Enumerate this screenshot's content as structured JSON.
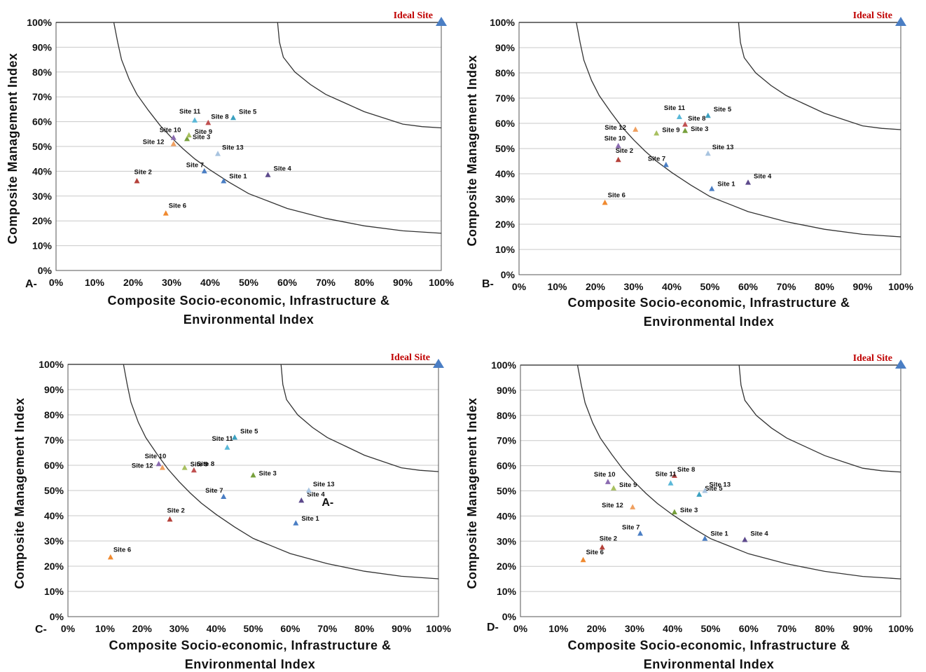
{
  "colors": {
    "Site 1": "#4a7ec4",
    "Site 2": "#b5413a",
    "Site 3": "#77a03c",
    "Site 4": "#5d4a8c",
    "Site 5": "#3aa0c0",
    "Site 6": "#f08a30",
    "Site 7": "#4a7ec4",
    "Site 8": "#c05050",
    "Site 9": "#a8c060",
    "Site 10": "#8a6ab0",
    "Site 11": "#5ab8d8",
    "Site 12": "#f0a060",
    "Site 13": "#a8c4e0",
    "ideal": "#4a7ec4",
    "curve": "#333333",
    "grid": "#c8c8c8"
  },
  "chart_data": [
    {
      "type": "scatter",
      "panel_label": "A-",
      "title": "",
      "xlabel": [
        "Composite Socio-economic, Infrastructure &",
        "Environmental Index"
      ],
      "ylabel": "Composite Management Index",
      "xlim": [
        0,
        100
      ],
      "ylim": [
        0,
        100
      ],
      "xticks": [
        "0%",
        "10%",
        "20%",
        "30%",
        "40%",
        "50%",
        "60%",
        "70%",
        "80%",
        "90%",
        "100%"
      ],
      "yticks": [
        "0%",
        "10%",
        "20%",
        "30%",
        "40%",
        "50%",
        "60%",
        "70%",
        "80%",
        "90%",
        "100%"
      ],
      "grid": "horizontal",
      "ideal": {
        "label": "Ideal Site",
        "x": 100,
        "y": 100
      },
      "curves": [
        [
          [
            15,
            100
          ],
          [
            16,
            92
          ],
          [
            17,
            85
          ],
          [
            19,
            77
          ],
          [
            21,
            71
          ],
          [
            24,
            64.5
          ],
          [
            27,
            58.5
          ],
          [
            30,
            53.5
          ],
          [
            33,
            49
          ],
          [
            36,
            45
          ],
          [
            40,
            40.5
          ],
          [
            45,
            35.5
          ],
          [
            50,
            31
          ],
          [
            55,
            28
          ],
          [
            60,
            25
          ],
          [
            70,
            21
          ],
          [
            80,
            18
          ],
          [
            90,
            16
          ],
          [
            100,
            15
          ]
        ],
        [
          [
            57.5,
            100
          ],
          [
            58,
            92
          ],
          [
            59,
            86
          ],
          [
            62,
            80
          ],
          [
            66,
            75
          ],
          [
            70,
            71
          ],
          [
            75,
            67.5
          ],
          [
            80,
            64
          ],
          [
            85,
            61.5
          ],
          [
            90,
            59
          ],
          [
            95,
            58
          ],
          [
            100,
            57.5
          ]
        ]
      ],
      "points": [
        {
          "name": "Site 1",
          "x": 43.5,
          "y": 36
        },
        {
          "name": "Site 2",
          "x": 21,
          "y": 36
        },
        {
          "name": "Site 3",
          "x": 34,
          "y": 53
        },
        {
          "name": "Site 4",
          "x": 55,
          "y": 38.5
        },
        {
          "name": "Site 5",
          "x": 46,
          "y": 61.5
        },
        {
          "name": "Site 6",
          "x": 28.5,
          "y": 23
        },
        {
          "name": "Site 7",
          "x": 38.5,
          "y": 40
        },
        {
          "name": "Site 8",
          "x": 39.5,
          "y": 59.5
        },
        {
          "name": "Site 9",
          "x": 34.5,
          "y": 54.5
        },
        {
          "name": "Site 10",
          "x": 30.5,
          "y": 53.5
        },
        {
          "name": "Site 11",
          "x": 36,
          "y": 60.5
        },
        {
          "name": "Site 12",
          "x": 30.5,
          "y": 51
        },
        {
          "name": "Site 13",
          "x": 42,
          "y": 47
        }
      ]
    },
    {
      "type": "scatter",
      "panel_label": "B-",
      "title": "",
      "xlabel": [
        "Composite Socio-economic, Infrastructure &",
        "Environmental Index"
      ],
      "ylabel": "Composite Management Index",
      "xlim": [
        0,
        100
      ],
      "ylim": [
        0,
        100
      ],
      "xticks": [
        "0%",
        "10%",
        "20%",
        "30%",
        "40%",
        "50%",
        "60%",
        "70%",
        "80%",
        "90%",
        "100%"
      ],
      "yticks": [
        "0%",
        "10%",
        "20%",
        "30%",
        "40%",
        "50%",
        "60%",
        "70%",
        "80%",
        "90%",
        "100%"
      ],
      "grid": "horizontal",
      "ideal": {
        "label": "Ideal Site",
        "x": 100,
        "y": 100
      },
      "curves": [
        [
          [
            15,
            100
          ],
          [
            16,
            92
          ],
          [
            17,
            85
          ],
          [
            19,
            77
          ],
          [
            21,
            71
          ],
          [
            24,
            64.5
          ],
          [
            27,
            58.5
          ],
          [
            30,
            53.5
          ],
          [
            33,
            49
          ],
          [
            36,
            45
          ],
          [
            40,
            40.5
          ],
          [
            45,
            35.5
          ],
          [
            50,
            31
          ],
          [
            55,
            28
          ],
          [
            60,
            25
          ],
          [
            70,
            21
          ],
          [
            80,
            18
          ],
          [
            90,
            16
          ],
          [
            100,
            15
          ]
        ],
        [
          [
            57.5,
            100
          ],
          [
            58,
            92
          ],
          [
            59,
            86
          ],
          [
            62,
            80
          ],
          [
            66,
            75
          ],
          [
            70,
            71
          ],
          [
            75,
            67.5
          ],
          [
            80,
            64
          ],
          [
            85,
            61.5
          ],
          [
            90,
            59
          ],
          [
            95,
            58
          ],
          [
            100,
            57.5
          ]
        ]
      ],
      "points": [
        {
          "name": "Site 1",
          "x": 50.5,
          "y": 34
        },
        {
          "name": "Site 2",
          "x": 26,
          "y": 45.5
        },
        {
          "name": "Site 3",
          "x": 43.5,
          "y": 57
        },
        {
          "name": "Site 4",
          "x": 60,
          "y": 36.5
        },
        {
          "name": "Site 5",
          "x": 49.5,
          "y": 63
        },
        {
          "name": "Site 6",
          "x": 22.5,
          "y": 28.5
        },
        {
          "name": "Site 7",
          "x": 38.5,
          "y": 43.5
        },
        {
          "name": "Site 8",
          "x": 43.5,
          "y": 59.5
        },
        {
          "name": "Site 9",
          "x": 36,
          "y": 56
        },
        {
          "name": "Site 10",
          "x": 26,
          "y": 51
        },
        {
          "name": "Site 11",
          "x": 42,
          "y": 62.5
        },
        {
          "name": "Site 12",
          "x": 30.5,
          "y": 57.5
        },
        {
          "name": "Site 13",
          "x": 49.5,
          "y": 48
        }
      ]
    },
    {
      "type": "scatter",
      "panel_label": "C-",
      "title": "",
      "xlabel": [
        "Composite Socio-economic, Infrastructure &",
        "Environmental Index"
      ],
      "ylabel": "Composite Management Index",
      "xlim": [
        0,
        100
      ],
      "ylim": [
        0,
        100
      ],
      "xticks": [
        "0%",
        "10%",
        "20%",
        "30%",
        "40%",
        "50%",
        "60%",
        "70%",
        "80%",
        "90%",
        "100%"
      ],
      "yticks": [
        "0%",
        "10%",
        "20%",
        "30%",
        "40%",
        "50%",
        "60%",
        "70%",
        "80%",
        "90%",
        "100%"
      ],
      "grid": "horizontal",
      "ideal": {
        "label": "Ideal Site",
        "x": 100,
        "y": 100
      },
      "curves": [
        [
          [
            15,
            100
          ],
          [
            16,
            92
          ],
          [
            17,
            85
          ],
          [
            19,
            77
          ],
          [
            21,
            71
          ],
          [
            24,
            64.5
          ],
          [
            27,
            58.5
          ],
          [
            30,
            53.5
          ],
          [
            33,
            49
          ],
          [
            36,
            45
          ],
          [
            40,
            40.5
          ],
          [
            45,
            35.5
          ],
          [
            50,
            31
          ],
          [
            55,
            28
          ],
          [
            60,
            25
          ],
          [
            70,
            21
          ],
          [
            80,
            18
          ],
          [
            90,
            16
          ],
          [
            100,
            15
          ]
        ],
        [
          [
            57.5,
            100
          ],
          [
            58,
            92
          ],
          [
            59,
            86
          ],
          [
            62,
            80
          ],
          [
            66,
            75
          ],
          [
            70,
            71
          ],
          [
            75,
            67.5
          ],
          [
            80,
            64
          ],
          [
            85,
            61.5
          ],
          [
            90,
            59
          ],
          [
            95,
            58
          ],
          [
            100,
            57.5
          ]
        ]
      ],
      "points": [
        {
          "name": "Site 1",
          "x": 61.5,
          "y": 37
        },
        {
          "name": "Site 2",
          "x": 27.5,
          "y": 38.5
        },
        {
          "name": "Site 3",
          "x": 50,
          "y": 56
        },
        {
          "name": "Site 4",
          "x": 63,
          "y": 46
        },
        {
          "name": "Site 5",
          "x": 45,
          "y": 71
        },
        {
          "name": "Site 6",
          "x": 11.5,
          "y": 23.5
        },
        {
          "name": "Site 7",
          "x": 42,
          "y": 47.5
        },
        {
          "name": "Site 8",
          "x": 34,
          "y": 58
        },
        {
          "name": "Site 9",
          "x": 31.5,
          "y": 59
        },
        {
          "name": "Site 10",
          "x": 24.5,
          "y": 60.5
        },
        {
          "name": "Site 11",
          "x": 43,
          "y": 67
        },
        {
          "name": "Site 12",
          "x": 25.5,
          "y": 59
        },
        {
          "name": "Site 13",
          "x": 65,
          "y": 50
        }
      ],
      "annotations": [
        {
          "text": "A-",
          "x": 68.5,
          "y": 45.5
        }
      ]
    },
    {
      "type": "scatter",
      "panel_label": "D-",
      "title": "",
      "xlabel": [
        "Composite Socio-economic, Infrastructure &",
        "Environmental Index"
      ],
      "ylabel": "Composite Management Index",
      "xlim": [
        0,
        100
      ],
      "ylim": [
        0,
        100
      ],
      "xticks": [
        "0%",
        "10%",
        "20%",
        "30%",
        "40%",
        "50%",
        "60%",
        "70%",
        "80%",
        "90%",
        "100%"
      ],
      "yticks": [
        "0%",
        "10%",
        "20%",
        "30%",
        "40%",
        "50%",
        "60%",
        "70%",
        "80%",
        "90%",
        "100%"
      ],
      "grid": "horizontal",
      "ideal": {
        "label": "Ideal Site",
        "x": 100,
        "y": 100
      },
      "curves": [
        [
          [
            15,
            100
          ],
          [
            16,
            92
          ],
          [
            17,
            85
          ],
          [
            19,
            77
          ],
          [
            21,
            71
          ],
          [
            24,
            64.5
          ],
          [
            27,
            58.5
          ],
          [
            30,
            53.5
          ],
          [
            33,
            49
          ],
          [
            36,
            45
          ],
          [
            40,
            40.5
          ],
          [
            45,
            35.5
          ],
          [
            50,
            31
          ],
          [
            55,
            28
          ],
          [
            60,
            25
          ],
          [
            70,
            21
          ],
          [
            80,
            18
          ],
          [
            90,
            16
          ],
          [
            100,
            15
          ]
        ],
        [
          [
            57.5,
            100
          ],
          [
            58,
            92
          ],
          [
            59,
            86
          ],
          [
            62,
            80
          ],
          [
            66,
            75
          ],
          [
            70,
            71
          ],
          [
            75,
            67.5
          ],
          [
            80,
            64
          ],
          [
            85,
            61.5
          ],
          [
            90,
            59
          ],
          [
            95,
            58
          ],
          [
            100,
            57.5
          ]
        ]
      ],
      "points": [
        {
          "name": "Site 1",
          "x": 48.5,
          "y": 31
        },
        {
          "name": "Site 2",
          "x": 21.5,
          "y": 27.5
        },
        {
          "name": "Site 3",
          "x": 40.5,
          "y": 41.5
        },
        {
          "name": "Site 4",
          "x": 59,
          "y": 30.5
        },
        {
          "name": "Site 5",
          "x": 47,
          "y": 48.5
        },
        {
          "name": "Site 6",
          "x": 16.5,
          "y": 22.5
        },
        {
          "name": "Site 7",
          "x": 31.5,
          "y": 33
        },
        {
          "name": "Site 8",
          "x": 40.5,
          "y": 56
        },
        {
          "name": "Site 9",
          "x": 24.5,
          "y": 51
        },
        {
          "name": "Site 10",
          "x": 23,
          "y": 53.5
        },
        {
          "name": "Site 11",
          "x": 39.5,
          "y": 53
        },
        {
          "name": "Site 12",
          "x": 29.5,
          "y": 43.5
        },
        {
          "name": "Site 13",
          "x": 48.5,
          "y": 50
        }
      ]
    }
  ]
}
